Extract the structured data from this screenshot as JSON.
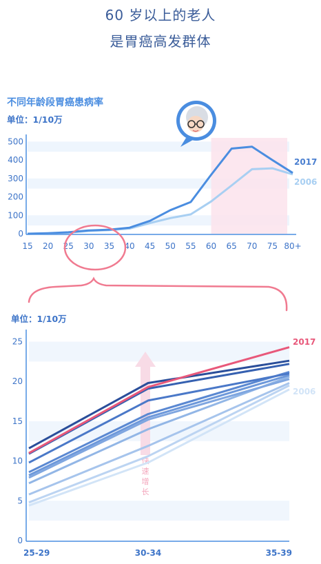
{
  "header": {
    "line1": "60 岁以上的老人",
    "line2": "是胃癌高发群体"
  },
  "chart_data": [
    {
      "type": "line",
      "title": "不同年龄段胃癌患病率",
      "unit_label": "单位：1/10万",
      "categories": [
        "15",
        "20",
        "25",
        "30",
        "35",
        "40",
        "45",
        "50",
        "55",
        "60",
        "65",
        "70",
        "75",
        "80+"
      ],
      "y_ticks": [
        0,
        100,
        200,
        300,
        400,
        500
      ],
      "ylim": [
        0,
        520
      ],
      "highlight_range": [
        "60",
        "80+"
      ],
      "series": [
        {
          "name": "2017",
          "color": "#4a8de0",
          "values": [
            0,
            3,
            8,
            18,
            22,
            33,
            70,
            128,
            172,
            320,
            462,
            472,
            400,
            330
          ]
        },
        {
          "name": "2006",
          "color": "#a8cff2",
          "values": [
            0,
            2,
            6,
            15,
            20,
            28,
            58,
            85,
            105,
            175,
            262,
            350,
            355,
            322
          ]
        }
      ]
    },
    {
      "type": "line",
      "unit_label": "单位：1/10万",
      "categories": [
        "25-29",
        "30-34",
        "35-39"
      ],
      "y_ticks": [
        0,
        5,
        10,
        15,
        20,
        25
      ],
      "ylim": [
        0,
        26
      ],
      "arrow_label": "快速增长",
      "series": [
        {
          "name": "2017",
          "color": "#e8587a",
          "values": [
            11.0,
            19.3,
            24.3
          ]
        },
        {
          "color": "#2a4e9a",
          "values": [
            11.6,
            19.8,
            22.6
          ]
        },
        {
          "color": "#3560b0",
          "values": [
            10.9,
            19.1,
            22.2
          ]
        },
        {
          "color": "#4a78c8",
          "values": [
            9.8,
            17.6,
            21.0
          ]
        },
        {
          "color": "#5a88d2",
          "values": [
            8.6,
            15.9,
            21.2
          ]
        },
        {
          "color": "#6d98da",
          "values": [
            8.2,
            15.5,
            20.8
          ]
        },
        {
          "color": "#7fa6e0",
          "values": [
            7.9,
            15.2,
            20.3
          ]
        },
        {
          "color": "#92b6e6",
          "values": [
            7.2,
            14.0,
            20.6
          ]
        },
        {
          "color": "#a6c4ec",
          "values": [
            5.8,
            11.9,
            19.8
          ]
        },
        {
          "color": "#bcd4f2",
          "values": [
            4.8,
            10.6,
            19.5
          ]
        },
        {
          "name": "2006",
          "color": "#d2e4f7",
          "values": [
            4.4,
            9.8,
            19.0
          ]
        }
      ]
    }
  ]
}
